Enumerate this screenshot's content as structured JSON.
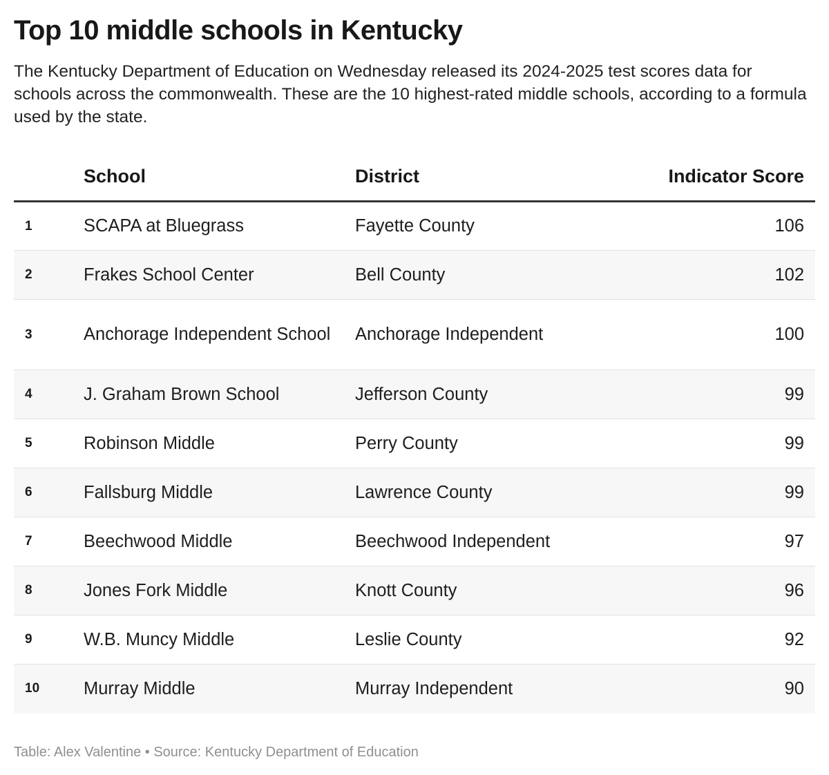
{
  "title": "Top 10 middle schools in Kentucky",
  "subtitle": "The Kentucky Department of Education on Wednesday released its 2024-2025 test scores data for schools across the commonwealth. These are the 10 highest-rated middle schools, according to a formula used by the state.",
  "footer": "Table: Alex Valentine • Source: Kentucky Department of Education",
  "chart_data": {
    "type": "table",
    "columns": [
      "",
      "School",
      "District",
      "Indicator Score"
    ],
    "rows": [
      {
        "rank": "1",
        "school": "SCAPA at Bluegrass",
        "district": "Fayette County",
        "score": 106
      },
      {
        "rank": "2",
        "school": "Frakes School Center",
        "district": "Bell County",
        "score": 102
      },
      {
        "rank": "3",
        "school": "Anchorage Independent School",
        "district": "Anchorage Independent",
        "score": 100
      },
      {
        "rank": "4",
        "school": "J. Graham Brown School",
        "district": "Jefferson County",
        "score": 99
      },
      {
        "rank": "5",
        "school": "Robinson Middle",
        "district": "Perry County",
        "score": 99
      },
      {
        "rank": "6",
        "school": "Fallsburg Middle",
        "district": "Lawrence County",
        "score": 99
      },
      {
        "rank": "7",
        "school": "Beechwood Middle",
        "district": "Beechwood Independent",
        "score": 97
      },
      {
        "rank": "8",
        "school": "Jones Fork Middle",
        "district": "Knott County",
        "score": 96
      },
      {
        "rank": "9",
        "school": "W.B. Muncy Middle",
        "district": "Leslie County",
        "score": 92
      },
      {
        "rank": "10",
        "school": "Murray Middle",
        "district": "Murray Independent",
        "score": 90
      }
    ]
  }
}
